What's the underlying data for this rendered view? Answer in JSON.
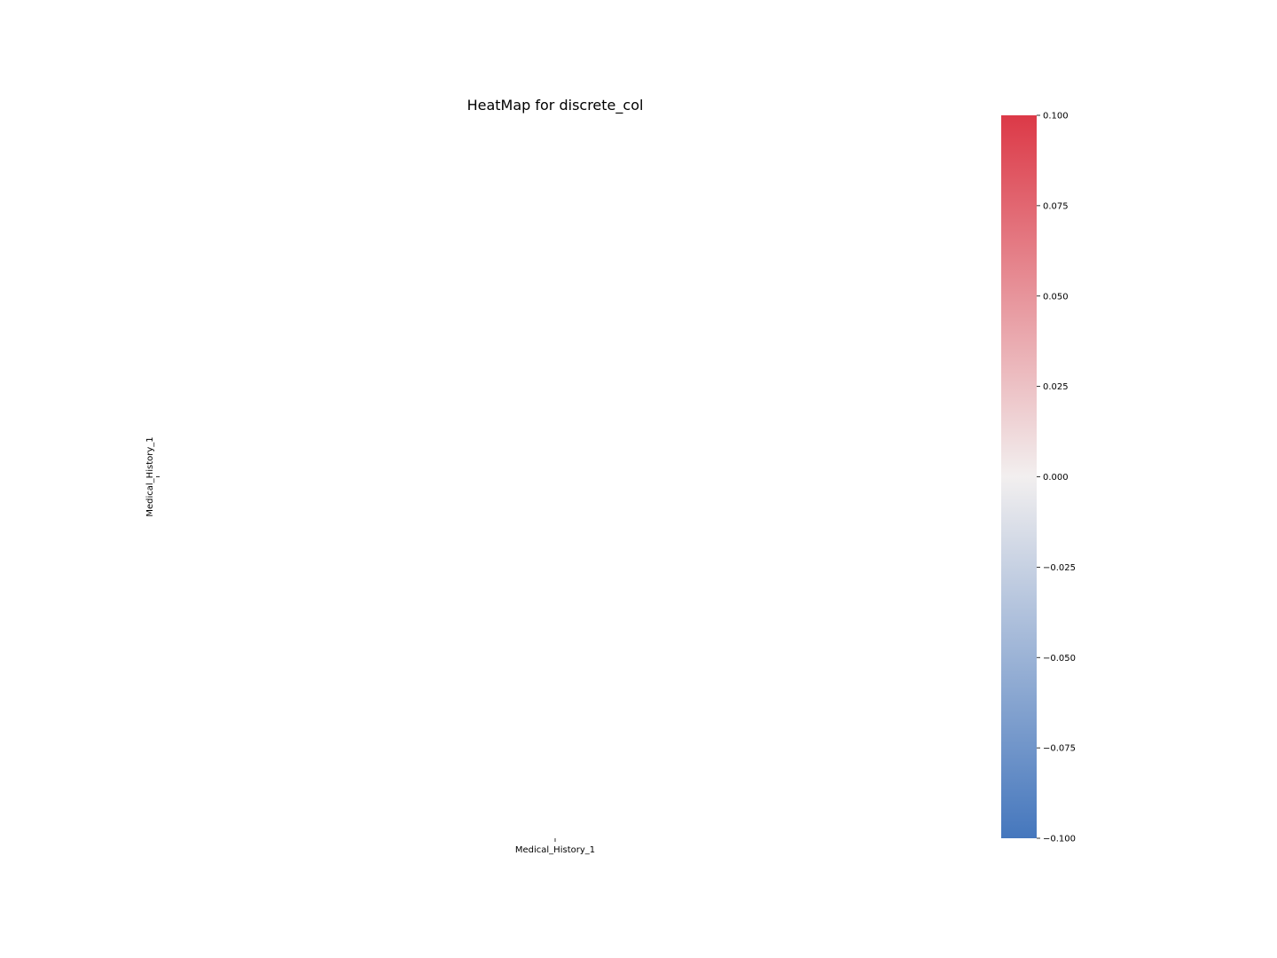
{
  "chart_data": {
    "type": "heatmap",
    "title": "HeatMap for discrete_col",
    "x_categories": [
      "Medical_History_1"
    ],
    "y_categories": [
      "Medical_History_1"
    ],
    "values": [
      [
        null
      ]
    ],
    "xlabel": "",
    "ylabel": "",
    "colorbar": {
      "min": -0.1,
      "max": 0.1,
      "ticks": [
        0.1,
        0.075,
        0.05,
        0.025,
        0.0,
        -0.025,
        -0.05,
        -0.075,
        -0.1
      ],
      "tick_labels": [
        "0.100",
        "0.075",
        "0.050",
        "0.025",
        "0.000",
        "−0.025",
        "−0.050",
        "−0.075",
        "−0.100"
      ],
      "colors": {
        "low": "#4577bd",
        "mid": "#f2efef",
        "high": "#dc3947"
      }
    },
    "grid": false,
    "legend": "colorbar-right"
  }
}
